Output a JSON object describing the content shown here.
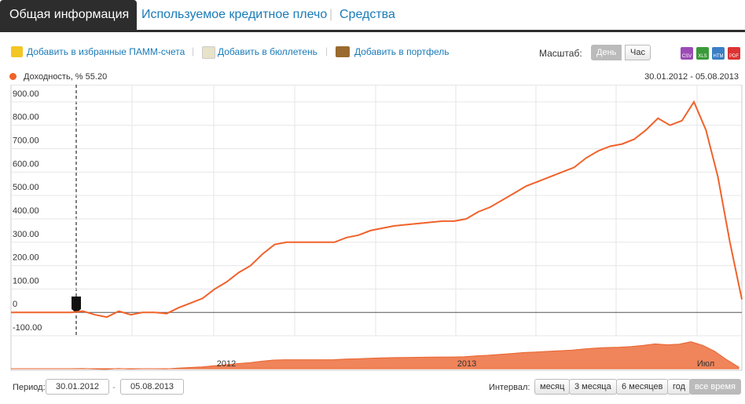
{
  "tabs": [
    "Общая информация",
    "Используемое кредитное плечо",
    "Средства"
  ],
  "actions": [
    "Добавить в избранные ПАММ-счета",
    "Добавить в бюллетень",
    "Добавить в портфель"
  ],
  "scale": {
    "label": "Масштаб:",
    "options": [
      "День",
      "Час"
    ]
  },
  "exports": [
    "CSV",
    "XLS",
    "HTM",
    "PDF"
  ],
  "chart_data": {
    "type": "line",
    "date_range": "30.01.2012 - 05.08.2013",
    "current_value": {
      "value": 55.2,
      "label": "55.20"
    },
    "ylim": [
      -100,
      950
    ],
    "yticks": [
      {
        "value": -100,
        "label": "-100.00"
      },
      0,
      {
        "value": 100,
        "label": "100.00"
      },
      {
        "value": 200,
        "label": "200.00"
      },
      {
        "value": 300,
        "label": "300.00"
      },
      {
        "value": 400,
        "label": "400.00"
      },
      {
        "value": 500,
        "label": "500.00"
      },
      {
        "value": 600,
        "label": "600.00"
      },
      {
        "value": 700,
        "label": "700.00"
      },
      {
        "value": 800,
        "label": "800.00"
      },
      {
        "value": 900,
        "label": "900.00"
      }
    ],
    "grid": true,
    "series": [
      {
        "name": "Доходность, %",
        "color": "#f0622a",
        "values": [
          0,
          0,
          0,
          0,
          0,
          0,
          5,
          -10,
          -20,
          5,
          -10,
          0,
          0,
          -5,
          20,
          40,
          60,
          100,
          130,
          170,
          200,
          250,
          290,
          300,
          300,
          300,
          300,
          300,
          320,
          330,
          350,
          360,
          370,
          375,
          380,
          385,
          390,
          390,
          400,
          430,
          450,
          480,
          510,
          540,
          560,
          580,
          600,
          620,
          660,
          690,
          710,
          720,
          740,
          780,
          830,
          800,
          820,
          900,
          780,
          580,
          300,
          55.2
        ]
      }
    ],
    "navigator_labels": [
      "2012",
      "2013",
      "Июл"
    ]
  },
  "period": {
    "label": "Период:",
    "from": "30.01.2012",
    "to": "05.08.2013"
  },
  "interval": {
    "label": "Интервал:",
    "options": [
      "месяц",
      "3 месяца",
      "6 месяцев",
      "год",
      "все время"
    ]
  }
}
